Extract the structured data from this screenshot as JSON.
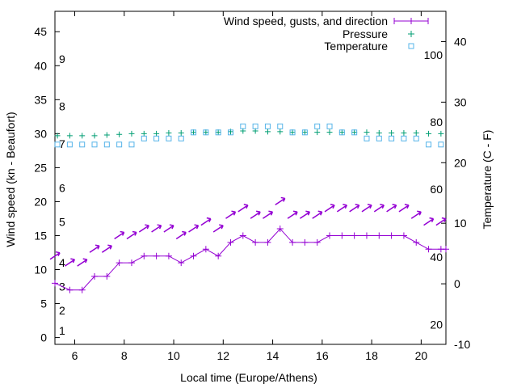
{
  "chart_data": {
    "type": "line",
    "title": "",
    "xlabel": "Local time (Europe/Athens)",
    "ylabel_left": "Wind speed (kn - Beaufort)",
    "ylabel_right": "Temperature (C - F)",
    "xlim": [
      5.2,
      21
    ],
    "ylim_left": [
      -1,
      48
    ],
    "ylim_right": [
      -10,
      45
    ],
    "x_ticks": [
      6,
      8,
      10,
      12,
      14,
      16,
      18,
      20
    ],
    "y_ticks_left": [
      0,
      5,
      10,
      15,
      20,
      25,
      30,
      35,
      40,
      45
    ],
    "y_ticks_right": [
      -10,
      0,
      10,
      20,
      30,
      40
    ],
    "beaufort_labels": [
      {
        "label": "1",
        "kn": 1
      },
      {
        "label": "2",
        "kn": 4
      },
      {
        "label": "3",
        "kn": 7.5
      },
      {
        "label": "4",
        "kn": 11
      },
      {
        "label": "5",
        "kn": 17
      },
      {
        "label": "6",
        "kn": 22
      },
      {
        "label": "7",
        "kn": 28.5
      },
      {
        "label": "8",
        "kn": 34
      },
      {
        "label": "9",
        "kn": 41
      }
    ],
    "fahrenheit_labels": [
      {
        "label": "20",
        "c": -6.7
      },
      {
        "label": "40",
        "c": 4.4
      },
      {
        "label": "60",
        "c": 15.6
      },
      {
        "label": "80",
        "c": 26.7
      },
      {
        "label": "100",
        "c": 37.8
      }
    ],
    "legend": [
      {
        "label": "Wind speed, gusts, and direction",
        "marker": "line-plus",
        "color": "#9400d3"
      },
      {
        "label": "Pressure",
        "marker": "plus",
        "color": "#009e73"
      },
      {
        "label": "Temperature",
        "marker": "square",
        "color": "#56b4e9"
      }
    ],
    "legend_position": "top-right",
    "series": [
      {
        "name": "Wind speed",
        "color": "#9400d3",
        "x": [
          5.2,
          5.8,
          6.3,
          6.8,
          7.3,
          7.8,
          8.3,
          8.8,
          9.3,
          9.8,
          10.3,
          10.8,
          11.3,
          11.8,
          12.3,
          12.8,
          13.3,
          13.8,
          14.3,
          14.8,
          15.3,
          15.8,
          16.3,
          16.8,
          17.3,
          17.8,
          18.3,
          18.8,
          19.3,
          19.8,
          20.3,
          20.8,
          21.0
        ],
        "values": [
          8,
          7,
          7,
          9,
          9,
          11,
          11,
          12,
          12,
          12,
          11,
          12,
          13,
          12,
          14,
          15,
          14,
          14,
          16,
          14,
          14,
          14,
          15,
          15,
          15,
          15,
          15,
          15,
          15,
          14,
          13,
          13,
          13
        ]
      },
      {
        "name": "Gusts",
        "color": "#9400d3",
        "x": [
          5.2,
          5.8,
          6.3,
          6.8,
          7.3,
          7.8,
          8.3,
          8.8,
          9.3,
          9.8,
          10.3,
          10.8,
          11.3,
          11.8,
          12.3,
          12.8,
          13.3,
          13.8,
          14.3,
          14.8,
          15.3,
          15.8,
          16.3,
          16.8,
          17.3,
          17.8,
          18.3,
          18.8,
          19.3,
          19.8,
          20.3,
          20.8
        ],
        "values": [
          12,
          11,
          11,
          13,
          13,
          15,
          15,
          16,
          16,
          16,
          15,
          16,
          17,
          16,
          18,
          19,
          18,
          18,
          20,
          18,
          18,
          18,
          19,
          19,
          19,
          19,
          19,
          19,
          19,
          18,
          17,
          17
        ]
      },
      {
        "name": "Pressure",
        "color": "#009e73",
        "x": [
          5.3,
          5.8,
          6.3,
          6.8,
          7.3,
          7.8,
          8.3,
          8.8,
          9.3,
          9.8,
          10.3,
          10.8,
          11.3,
          11.8,
          12.3,
          12.8,
          13.3,
          13.8,
          14.3,
          14.8,
          15.3,
          15.8,
          16.3,
          16.8,
          17.3,
          17.8,
          18.3,
          18.8,
          19.3,
          19.8,
          20.3,
          20.8
        ],
        "values": [
          29.7,
          29.7,
          29.7,
          29.7,
          29.8,
          29.9,
          30.0,
          30.0,
          30.0,
          30.1,
          30.1,
          30.2,
          30.2,
          30.2,
          30.3,
          30.4,
          30.4,
          30.3,
          30.3,
          30.2,
          30.2,
          30.2,
          30.2,
          30.2,
          30.2,
          30.2,
          30.1,
          30.1,
          30.1,
          30.1,
          30.0,
          30.0
        ]
      },
      {
        "name": "Temperature",
        "color": "#56b4e9",
        "x": [
          5.3,
          5.8,
          6.3,
          6.8,
          7.3,
          7.8,
          8.3,
          8.8,
          9.3,
          9.8,
          10.3,
          10.8,
          11.3,
          11.8,
          12.3,
          12.8,
          13.3,
          13.8,
          14.3,
          14.8,
          15.3,
          15.8,
          16.3,
          16.8,
          17.3,
          17.8,
          18.3,
          18.8,
          19.3,
          19.8,
          20.3,
          20.8
        ],
        "values": [
          23,
          23,
          23,
          23,
          23,
          23,
          23,
          24,
          24,
          24,
          24,
          25,
          25,
          25,
          25,
          26,
          26,
          26,
          26,
          25,
          25,
          26,
          26,
          25,
          25,
          24,
          24,
          24,
          24,
          24,
          23,
          23
        ]
      }
    ]
  }
}
